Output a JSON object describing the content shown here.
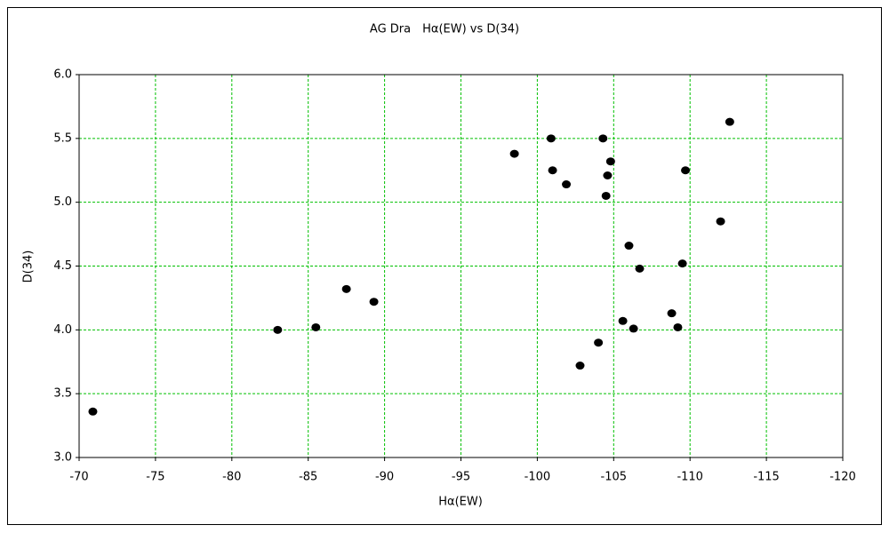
{
  "chart_data": {
    "type": "scatter",
    "title": "AG Dra　Hα(EW) vs D(34)",
    "x_label": "Hα(EW)",
    "y_label": "D(34)",
    "x": [
      -70.9,
      -83.0,
      -85.5,
      -87.5,
      -89.3,
      -98.5,
      -100.9,
      -101.0,
      -101.9,
      -104.3,
      -104.8,
      -104.6,
      -104.5,
      -102.8,
      -104.0,
      -105.6,
      -106.0,
      -106.3,
      -106.7,
      -108.8,
      -109.2,
      -109.5,
      -109.7,
      -112.0,
      -112.6
    ],
    "values": [
      3.36,
      4.0,
      4.02,
      4.32,
      4.22,
      5.38,
      5.5,
      5.25,
      5.14,
      5.5,
      5.32,
      5.21,
      5.05,
      3.72,
      3.9,
      4.07,
      4.66,
      4.01,
      4.48,
      4.13,
      4.02,
      4.52,
      5.25,
      4.85,
      5.63
    ],
    "color": "#000000",
    "xlim": [
      -70,
      -120
    ],
    "xticks": [
      -70,
      -75,
      -80,
      -85,
      -90,
      -95,
      -100,
      -105,
      -110,
      -115,
      -120
    ],
    "ylim": [
      3,
      6
    ],
    "yticks": [
      {
        "value": 3,
        "label": "3.0"
      },
      3.5,
      {
        "value": 4,
        "label": "4.0"
      },
      4.5,
      {
        "value": 5,
        "label": "5.0"
      },
      5.5,
      {
        "value": 6,
        "label": "6.0"
      }
    ],
    "grid": true,
    "grid_color": "#00c000"
  }
}
